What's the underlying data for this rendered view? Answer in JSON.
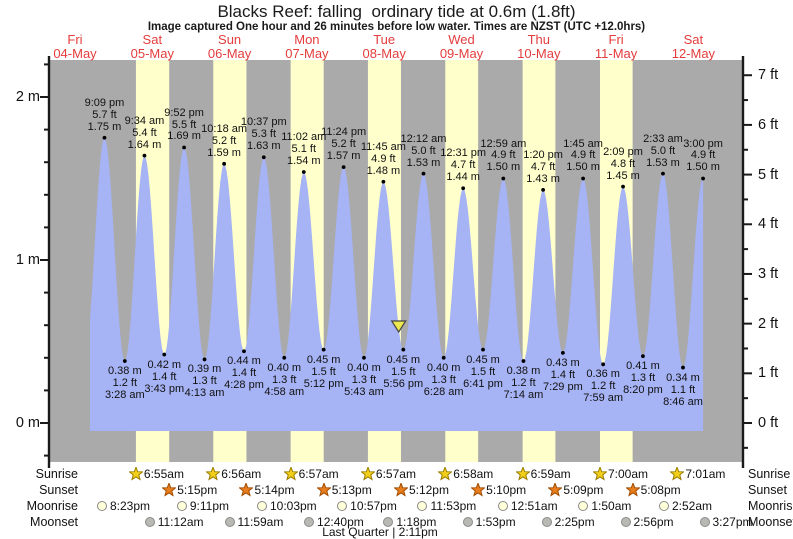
{
  "title": "Blacks Reef: falling  ordinary tide at 0.6m (1.8ft)",
  "subtitle": "Image captured One hour and 26 minutes before low water. Times are NZST (UTC +12.0hrs)",
  "days": [
    {
      "dow": "Fri",
      "date": "04-May"
    },
    {
      "dow": "Sat",
      "date": "05-May"
    },
    {
      "dow": "Sun",
      "date": "06-May"
    },
    {
      "dow": "Mon",
      "date": "07-May"
    },
    {
      "dow": "Tue",
      "date": "08-May"
    },
    {
      "dow": "Wed",
      "date": "09-May"
    },
    {
      "dow": "Thu",
      "date": "10-May"
    },
    {
      "dow": "Fri",
      "date": "11-May"
    },
    {
      "dow": "Sat",
      "date": "12-May"
    }
  ],
  "axes": {
    "left_labels": [
      {
        "text": "2 m",
        "m": 2
      },
      {
        "text": "1 m",
        "m": 1
      },
      {
        "text": "0 m",
        "m": 0
      }
    ],
    "right_labels": [
      {
        "text": "7 ft",
        "ft": 7
      },
      {
        "text": "6 ft",
        "ft": 6
      },
      {
        "text": "5 ft",
        "ft": 5
      },
      {
        "text": "4 ft",
        "ft": 4
      },
      {
        "text": "3 ft",
        "ft": 3
      },
      {
        "text": "2 ft",
        "ft": 2
      },
      {
        "text": "1 ft",
        "ft": 1
      },
      {
        "text": "0 ft",
        "ft": 0
      }
    ]
  },
  "chart_data": {
    "type": "area",
    "title": "Blacks Reef tide height curve",
    "ylabel_left": "metres",
    "ylabel_right": "feet",
    "ylim_m": [
      -0.25,
      2.2
    ],
    "x_range_days": [
      "04-May",
      "12-May"
    ],
    "tide_events": [
      {
        "kind": "high",
        "day": 0,
        "hour": 21.15,
        "time": "9:09 pm",
        "ft": "5.7 ft",
        "m": "1.75 m",
        "height_m": 1.75
      },
      {
        "kind": "low",
        "day": 1,
        "hour": 3.467,
        "time": "3:28 am",
        "ft": "1.2 ft",
        "m": "0.38 m",
        "height_m": 0.38
      },
      {
        "kind": "high",
        "day": 1,
        "hour": 9.567,
        "time": "9:34 am",
        "ft": "5.4 ft",
        "m": "1.64 m",
        "height_m": 1.64
      },
      {
        "kind": "low",
        "day": 1,
        "hour": 15.717,
        "time": "3:43 pm",
        "ft": "1.4 ft",
        "m": "0.42 m",
        "height_m": 0.42
      },
      {
        "kind": "high",
        "day": 1,
        "hour": 21.867,
        "time": "9:52 pm",
        "ft": "5.5 ft",
        "m": "1.69 m",
        "height_m": 1.69
      },
      {
        "kind": "low",
        "day": 2,
        "hour": 4.217,
        "time": "4:13 am",
        "ft": "1.3 ft",
        "m": "0.39 m",
        "height_m": 0.39
      },
      {
        "kind": "high",
        "day": 2,
        "hour": 10.3,
        "time": "10:18 am",
        "ft": "5.2 ft",
        "m": "1.59 m",
        "height_m": 1.59
      },
      {
        "kind": "low",
        "day": 2,
        "hour": 16.467,
        "time": "4:28 pm",
        "ft": "1.4 ft",
        "m": "0.44 m",
        "height_m": 0.44
      },
      {
        "kind": "high",
        "day": 2,
        "hour": 22.617,
        "time": "10:37 pm",
        "ft": "5.3 ft",
        "m": "1.63 m",
        "height_m": 1.63
      },
      {
        "kind": "low",
        "day": 3,
        "hour": 4.967,
        "time": "4:58 am",
        "ft": "1.3 ft",
        "m": "0.40 m",
        "height_m": 0.4
      },
      {
        "kind": "high",
        "day": 3,
        "hour": 11.033,
        "time": "11:02 am",
        "ft": "5.1 ft",
        "m": "1.54 m",
        "height_m": 1.54
      },
      {
        "kind": "low",
        "day": 3,
        "hour": 17.2,
        "time": "5:12 pm",
        "ft": "1.5 ft",
        "m": "0.45 m",
        "height_m": 0.45
      },
      {
        "kind": "high",
        "day": 3,
        "hour": 23.4,
        "time": "11:24 pm",
        "ft": "5.2 ft",
        "m": "1.57 m",
        "height_m": 1.57
      },
      {
        "kind": "low",
        "day": 4,
        "hour": 5.717,
        "time": "5:43 am",
        "ft": "1.3 ft",
        "m": "0.40 m",
        "height_m": 0.4
      },
      {
        "kind": "high",
        "day": 4,
        "hour": 11.75,
        "time": "11:45 am",
        "ft": "4.9 ft",
        "m": "1.48 m",
        "height_m": 1.48
      },
      {
        "kind": "low",
        "day": 4,
        "hour": 17.933,
        "time": "5:56 pm",
        "ft": "1.5 ft",
        "m": "0.45 m",
        "height_m": 0.45
      },
      {
        "kind": "high",
        "day": 5,
        "hour": 0.2,
        "time": "12:12 am",
        "ft": "5.0 ft",
        "m": "1.53 m",
        "height_m": 1.53
      },
      {
        "kind": "low",
        "day": 5,
        "hour": 6.467,
        "time": "6:28 am",
        "ft": "1.3 ft",
        "m": "0.40 m",
        "height_m": 0.4
      },
      {
        "kind": "high",
        "day": 5,
        "hour": 12.517,
        "time": "12:31 pm",
        "ft": "4.7 ft",
        "m": "1.44 m",
        "height_m": 1.44
      },
      {
        "kind": "low",
        "day": 5,
        "hour": 18.683,
        "time": "6:41 pm",
        "ft": "1.5 ft",
        "m": "0.45 m",
        "height_m": 0.45
      },
      {
        "kind": "high",
        "day": 6,
        "hour": 0.983,
        "time": "12:59 am",
        "ft": "4.9 ft",
        "m": "1.50 m",
        "height_m": 1.5
      },
      {
        "kind": "low",
        "day": 6,
        "hour": 7.233,
        "time": "7:14 am",
        "ft": "1.2 ft",
        "m": "0.38 m",
        "height_m": 0.38
      },
      {
        "kind": "high",
        "day": 6,
        "hour": 13.333,
        "time": "1:20 pm",
        "ft": "4.7 ft",
        "m": "1.43 m",
        "height_m": 1.43
      },
      {
        "kind": "low",
        "day": 6,
        "hour": 19.483,
        "time": "7:29 pm",
        "ft": "1.4 ft",
        "m": "0.43 m",
        "height_m": 0.43
      },
      {
        "kind": "high",
        "day": 7,
        "hour": 1.75,
        "time": "1:45 am",
        "ft": "4.9 ft",
        "m": "1.50 m",
        "height_m": 1.5
      },
      {
        "kind": "low",
        "day": 7,
        "hour": 7.983,
        "time": "7:59 am",
        "ft": "1.2 ft",
        "m": "0.36 m",
        "height_m": 0.36
      },
      {
        "kind": "high",
        "day": 7,
        "hour": 14.15,
        "time": "2:09 pm",
        "ft": "4.8 ft",
        "m": "1.45 m",
        "height_m": 1.45
      },
      {
        "kind": "low",
        "day": 7,
        "hour": 20.333,
        "time": "8:20 pm",
        "ft": "1.3 ft",
        "m": "0.41 m",
        "height_m": 0.41
      },
      {
        "kind": "high",
        "day": 8,
        "hour": 2.55,
        "time": "2:33 am",
        "ft": "5.0 ft",
        "m": "1.53 m",
        "height_m": 1.53
      },
      {
        "kind": "low",
        "day": 8,
        "hour": 8.767,
        "time": "8:46 am",
        "ft": "1.1 ft",
        "m": "0.34 m",
        "height_m": 0.34
      },
      {
        "kind": "high",
        "day": 8,
        "hour": 15.0,
        "time": "3:00 pm",
        "ft": "4.9 ft",
        "m": "1.50 m",
        "height_m": 1.5
      }
    ],
    "current_time_marker": {
      "day": 4,
      "hour": 16.5
    },
    "colors": {
      "night_band": "#aaaaaa",
      "daylight_band": "#ffffcc",
      "tide_fill": "#a6b3f4",
      "marker_fill": "#ebe94f",
      "day_label": "#e43c3c",
      "axis": "#1a1a1a"
    }
  },
  "astro": {
    "rows": [
      {
        "name": "Sunrise",
        "icon": "sunrise-star",
        "events": [
          {
            "day": 1,
            "hour": 6.917,
            "label": "6:55am"
          },
          {
            "day": 2,
            "hour": 6.933,
            "label": "6:56am"
          },
          {
            "day": 3,
            "hour": 6.95,
            "label": "6:57am"
          },
          {
            "day": 4,
            "hour": 6.95,
            "label": "6:57am"
          },
          {
            "day": 5,
            "hour": 6.967,
            "label": "6:58am"
          },
          {
            "day": 6,
            "hour": 6.983,
            "label": "6:59am"
          },
          {
            "day": 7,
            "hour": 7.0,
            "label": "7:00am"
          },
          {
            "day": 8,
            "hour": 7.017,
            "label": "7:01am"
          }
        ]
      },
      {
        "name": "Sunset",
        "icon": "sunset-star",
        "events": [
          {
            "day": 1,
            "hour": 17.25,
            "label": "5:15pm"
          },
          {
            "day": 2,
            "hour": 17.233,
            "label": "5:14pm"
          },
          {
            "day": 3,
            "hour": 17.217,
            "label": "5:13pm"
          },
          {
            "day": 4,
            "hour": 17.2,
            "label": "5:12pm"
          },
          {
            "day": 5,
            "hour": 17.167,
            "label": "5:10pm"
          },
          {
            "day": 6,
            "hour": 17.15,
            "label": "5:09pm"
          },
          {
            "day": 7,
            "hour": 17.133,
            "label": "5:08pm"
          }
        ]
      },
      {
        "name": "Moonrise",
        "icon": "moonrise-circle",
        "events": [
          {
            "day": 0,
            "hour": 20.383,
            "label": "8:23pm"
          },
          {
            "day": 1,
            "hour": 21.183,
            "label": "9:11pm"
          },
          {
            "day": 2,
            "hour": 22.05,
            "label": "10:03pm"
          },
          {
            "day": 3,
            "hour": 22.95,
            "label": "10:57pm"
          },
          {
            "day": 4,
            "hour": 23.883,
            "label": "11:53pm"
          },
          {
            "day": 6,
            "hour": 0.85,
            "label": "12:51am"
          },
          {
            "day": 7,
            "hour": 1.833,
            "label": "1:50am"
          },
          {
            "day": 8,
            "hour": 2.867,
            "label": "2:52am"
          }
        ]
      },
      {
        "name": "Moonset",
        "icon": "moonset-circle",
        "events": [
          {
            "day": 1,
            "hour": 11.2,
            "label": "11:12am"
          },
          {
            "day": 2,
            "hour": 11.983,
            "label": "11:59am"
          },
          {
            "day": 3,
            "hour": 12.667,
            "label": "12:40pm"
          },
          {
            "day": 4,
            "hour": 13.3,
            "label": "1:18pm"
          },
          {
            "day": 5,
            "hour": 13.883,
            "label": "1:53pm"
          },
          {
            "day": 6,
            "hour": 14.417,
            "label": "2:25pm"
          },
          {
            "day": 7,
            "hour": 14.933,
            "label": "2:56pm"
          },
          {
            "day": 8,
            "hour": 15.45,
            "label": "3:27pm"
          }
        ]
      }
    ],
    "moon_phase": "Last Quarter | 2:11pm"
  }
}
